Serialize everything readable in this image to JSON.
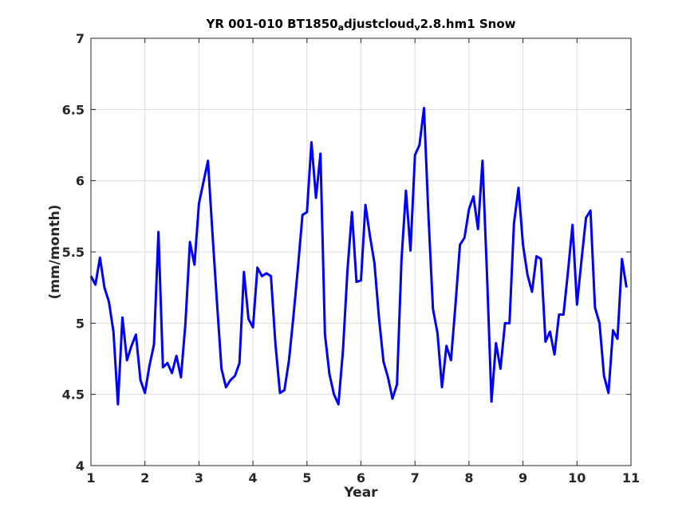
{
  "chart_data": {
    "type": "line",
    "title": {
      "parts": [
        {
          "text": "YR 001-010 BT1850",
          "shift": "none"
        },
        {
          "text": "a",
          "shift": "sub"
        },
        {
          "text": "djustcloud",
          "shift": "none"
        },
        {
          "text": "v",
          "shift": "sub"
        },
        {
          "text": "2.8.hm1 Snow",
          "shift": "none"
        }
      ]
    },
    "xlabel": "Year",
    "ylabel": "(mm/month)",
    "xlim": [
      1,
      11
    ],
    "ylim": [
      4,
      7
    ],
    "xticks": [
      1,
      2,
      3,
      4,
      5,
      6,
      7,
      8,
      9,
      10,
      11
    ],
    "xtick_labels": [
      "1",
      "2",
      "3",
      "4",
      "5",
      "6",
      "7",
      "8",
      "9",
      "10",
      "11"
    ],
    "yticks": [
      4,
      4.5,
      5,
      5.5,
      6,
      6.5,
      7
    ],
    "ytick_labels": [
      "4",
      "4.5",
      "5",
      "5.5",
      "6",
      "6.5",
      "7"
    ],
    "grid": true,
    "series": [
      {
        "color": "#0000ff",
        "x": [
          1.0,
          1.083,
          1.167,
          1.25,
          1.333,
          1.417,
          1.5,
          1.583,
          1.667,
          1.75,
          1.833,
          1.917,
          2.0,
          2.083,
          2.167,
          2.25,
          2.333,
          2.417,
          2.5,
          2.583,
          2.667,
          2.75,
          2.833,
          2.917,
          3.0,
          3.083,
          3.167,
          3.25,
          3.333,
          3.417,
          3.5,
          3.583,
          3.667,
          3.75,
          3.833,
          3.917,
          4.0,
          4.083,
          4.167,
          4.25,
          4.333,
          4.417,
          4.5,
          4.583,
          4.667,
          4.75,
          4.833,
          4.917,
          5.0,
          5.083,
          5.167,
          5.25,
          5.333,
          5.417,
          5.5,
          5.583,
          5.667,
          5.75,
          5.833,
          5.917,
          6.0,
          6.083,
          6.167,
          6.25,
          6.333,
          6.417,
          6.5,
          6.583,
          6.667,
          6.75,
          6.833,
          6.917,
          7.0,
          7.083,
          7.167,
          7.25,
          7.333,
          7.417,
          7.5,
          7.583,
          7.667,
          7.75,
          7.833,
          7.917,
          8.0,
          8.083,
          8.167,
          8.25,
          8.333,
          8.417,
          8.5,
          8.583,
          8.667,
          8.75,
          8.833,
          8.917,
          9.0,
          9.083,
          9.167,
          9.25,
          9.333,
          9.417,
          9.5,
          9.583,
          9.667,
          9.75,
          9.833,
          9.917,
          10.0,
          10.083,
          10.167,
          10.25,
          10.333,
          10.417,
          10.5,
          10.583,
          10.667,
          10.75,
          10.833,
          10.917
        ],
        "y": [
          5.33,
          5.27,
          5.46,
          5.25,
          5.15,
          4.94,
          4.43,
          5.04,
          4.74,
          4.84,
          4.92,
          4.6,
          4.51,
          4.7,
          4.85,
          5.64,
          4.69,
          4.72,
          4.65,
          4.77,
          4.62,
          5.0,
          5.57,
          5.41,
          5.84,
          5.99,
          6.14,
          5.63,
          5.15,
          4.68,
          4.55,
          4.6,
          4.63,
          4.72,
          5.36,
          5.03,
          4.97,
          5.39,
          5.33,
          5.35,
          5.33,
          4.85,
          4.51,
          4.53,
          4.74,
          5.05,
          5.39,
          5.76,
          5.78,
          6.27,
          5.88,
          6.19,
          4.92,
          4.64,
          4.5,
          4.43,
          4.81,
          5.37,
          5.78,
          5.29,
          5.3,
          5.83,
          5.61,
          5.42,
          5.04,
          4.73,
          4.62,
          4.47,
          4.57,
          5.44,
          5.93,
          5.51,
          6.18,
          6.25,
          6.51,
          5.75,
          5.1,
          4.93,
          4.55,
          4.84,
          4.74,
          5.13,
          5.55,
          5.6,
          5.8,
          5.89,
          5.66,
          6.14,
          5.35,
          4.45,
          4.86,
          4.68,
          5.0,
          5.0,
          5.7,
          5.95,
          5.55,
          5.34,
          5.22,
          5.47,
          5.45,
          4.87,
          4.94,
          4.78,
          5.06,
          5.06,
          5.36,
          5.69,
          5.13,
          5.44,
          5.74,
          5.79,
          5.11,
          5.0,
          4.63,
          4.51,
          4.95,
          4.89,
          5.45,
          5.25
        ]
      }
    ]
  }
}
